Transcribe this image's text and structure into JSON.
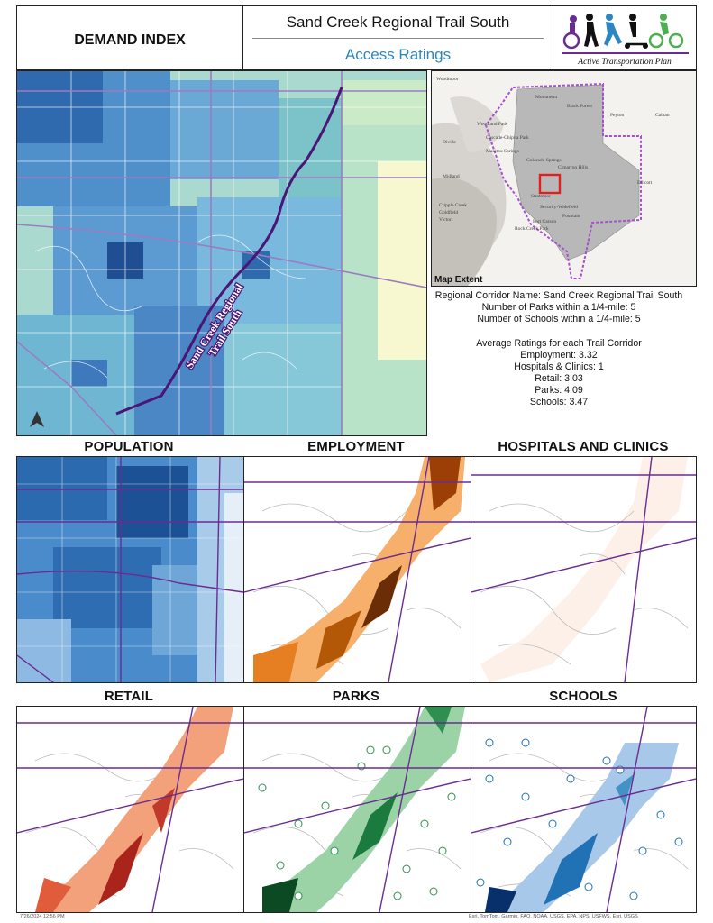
{
  "header": {
    "left_title": "DEMAND INDEX",
    "title": "Sand Creek Regional Trail South",
    "subtitle": "Access Ratings",
    "logo_text": "Active Transportation Plan"
  },
  "main_map": {
    "trail_label_line1": "Sand Creek Regional",
    "trail_label_line2": "Trail South"
  },
  "extent_map": {
    "label": "Map Extent",
    "places": [
      "Woodmoor",
      "Monument",
      "Black Forest",
      "Peyton",
      "Calhan",
      "Woodland Park",
      "Cascade-Chipita Park",
      "Manitou Springs",
      "Divide",
      "Colorado Springs",
      "Cimarron Hills",
      "Ellicott",
      "Midland",
      "Security-Widefield",
      "Fountain",
      "Cripple Creek",
      "Goldfield",
      "Victor",
      "Stratmoor",
      "Fort Carson",
      "Rock Creek Park"
    ]
  },
  "info": {
    "corridor": "Regional Corridor Name: Sand Creek Regional Trail South",
    "parks_count": "Number of Parks within a 1/4-mile: 5",
    "schools_count": "Number of Schools within a 1/4-mile: 5",
    "avg_heading": "Average Ratings for each Trail Corridor",
    "employment": "Employment: 3.32",
    "hospitals": "Hospitals & Clinics: 1",
    "retail": "Retail: 3.03",
    "parks": "Parks: 4.09",
    "schools": "Schools: 3.47"
  },
  "panels": {
    "population": "POPULATION",
    "employment": "EMPLOYMENT",
    "hospitals": "HOSPITALS AND CLINICS",
    "retail": "RETAIL",
    "parks": "PARKS",
    "schools": "SCHOOLS"
  },
  "footer": {
    "date": "7/26/2024 12:56 PM",
    "credits": "Esri, TomTom, Garmin, FAO, NOAA, USGS, EPA, NPS, USFWS, Esri, USGS"
  },
  "colors": {
    "trail": "#4b1576",
    "roads_purple": "#6a2c91",
    "demand_dark": "#2a5fa8",
    "demand_light": "#a8dcd2",
    "employment": "#b35806",
    "retail": "#c0392b",
    "parks": "#1b7a3e",
    "schools": "#2171b5"
  }
}
